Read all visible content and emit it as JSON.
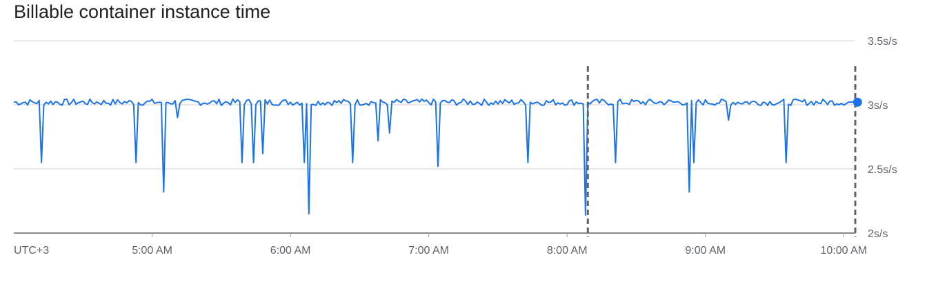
{
  "title": "Billable container instance time",
  "chart_data": {
    "type": "line",
    "title": "Billable container instance time",
    "timezone_label": "UTC+3",
    "x_ticks": [
      "5:00 AM",
      "6:00 AM",
      "7:00 AM",
      "8:00 AM",
      "9:00 AM",
      "10:00 AM"
    ],
    "y_ticks": [
      "2s/s",
      "2.5s/s",
      "3s/s",
      "3.5s/s"
    ],
    "ylim": [
      2,
      3.5
    ],
    "x_range": [
      "4:00 AM",
      "10:05 AM"
    ],
    "grid": true,
    "color": "#1a73e8",
    "baseline": 3.02,
    "dips": [
      {
        "time": "4:12 AM",
        "value": 2.55
      },
      {
        "time": "4:53 AM",
        "value": 2.55
      },
      {
        "time": "5:05 AM",
        "value": 2.32
      },
      {
        "time": "5:11 AM",
        "value": 2.9
      },
      {
        "time": "5:39 AM",
        "value": 2.55
      },
      {
        "time": "5:48 AM",
        "value": 2.62
      },
      {
        "time": "5:44 AM",
        "value": 2.55
      },
      {
        "time": "6:06 AM",
        "value": 2.55
      },
      {
        "time": "6:08 AM",
        "value": 2.15
      },
      {
        "time": "6:27 AM",
        "value": 2.55
      },
      {
        "time": "6:38 AM",
        "value": 2.72
      },
      {
        "time": "6:43 AM",
        "value": 2.78
      },
      {
        "time": "7:04 AM",
        "value": 2.52
      },
      {
        "time": "7:43 AM",
        "value": 2.55
      },
      {
        "time": "8:08 AM",
        "value": 2.14
      },
      {
        "time": "8:21 AM",
        "value": 2.55
      },
      {
        "time": "8:53 AM",
        "value": 2.32
      },
      {
        "time": "8:55 AM",
        "value": 2.55
      },
      {
        "time": "9:10 AM",
        "value": 2.88
      },
      {
        "time": "9:35 AM",
        "value": 2.55
      }
    ],
    "markers": [
      "8:09 AM",
      "10:05 AM"
    ],
    "last_point": {
      "time": "10:06 AM",
      "value": 3.02
    }
  }
}
